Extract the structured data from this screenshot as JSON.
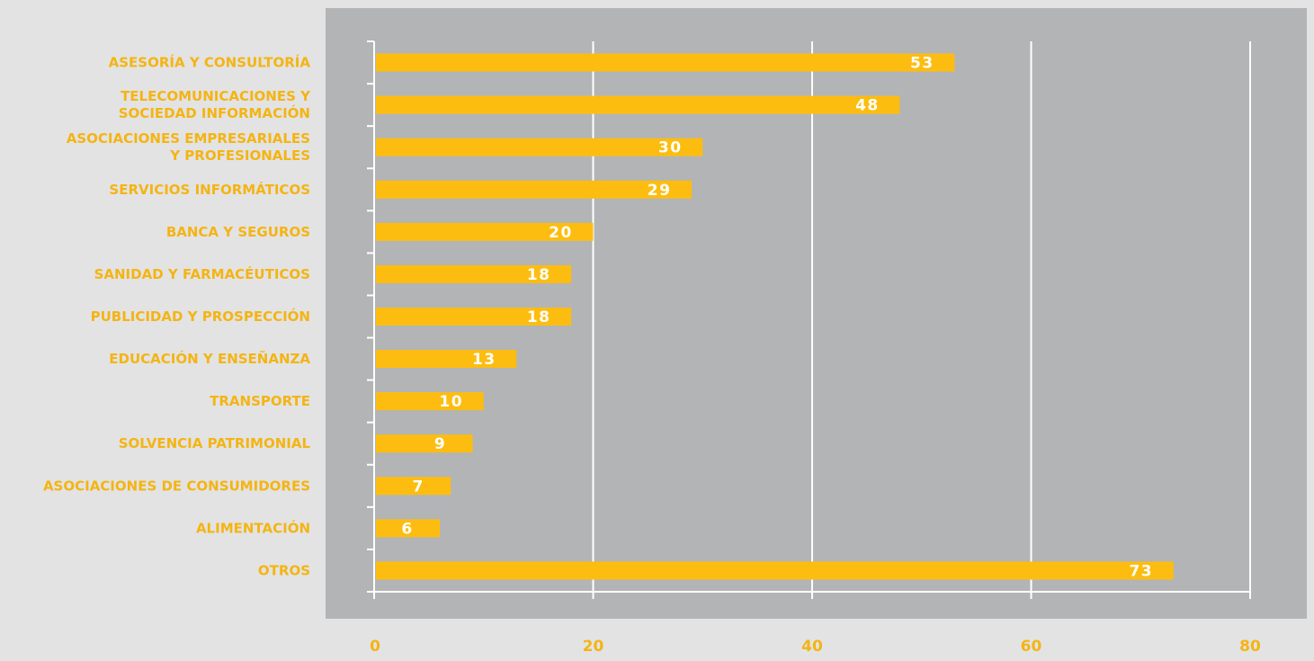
{
  "chart_data": {
    "type": "bar",
    "orientation": "horizontal",
    "categories": [
      "ASESORÍA Y CONSULTORÍA",
      "TELECOMUNICACIONES Y|SOCIEDAD INFORMACIÓN",
      "ASOCIACIONES EMPRESARIALES|Y PROFESIONALES",
      "SERVICIOS INFORMÁTICOS",
      "BANCA Y SEGUROS",
      "SANIDAD Y FARMACÉUTICOS",
      "PUBLICIDAD Y PROSPECCIÓN",
      "EDUCACIÓN Y ENSEÑANZA",
      "TRANSPORTE",
      "SOLVENCIA PATRIMONIAL",
      "ASOCIACIONES DE CONSUMIDORES",
      "ALIMENTACIÓN",
      "OTROS"
    ],
    "values": [
      53,
      48,
      30,
      29,
      20,
      18,
      18,
      13,
      10,
      9,
      7,
      6,
      73
    ],
    "data_labels": [
      "53",
      "48",
      "30",
      "29",
      "20",
      "18",
      "18",
      "13",
      "10",
      "9",
      "7",
      "6",
      "73"
    ],
    "x_ticks": [
      0,
      20,
      40,
      60,
      80
    ],
    "x_tick_labels": [
      "0",
      "20",
      "40",
      "60",
      "80"
    ],
    "xlim": [
      0,
      80
    ],
    "title": "",
    "xlabel": "",
    "ylabel": "",
    "grid": true,
    "legend": "none",
    "colors": {
      "bar": "#fdbd10",
      "label": "#f4b413",
      "plot_bg": "#b3b4b6",
      "page_bg": "#e3e3e3",
      "grid": "#ffffff",
      "value_text": "#ffffff"
    }
  }
}
